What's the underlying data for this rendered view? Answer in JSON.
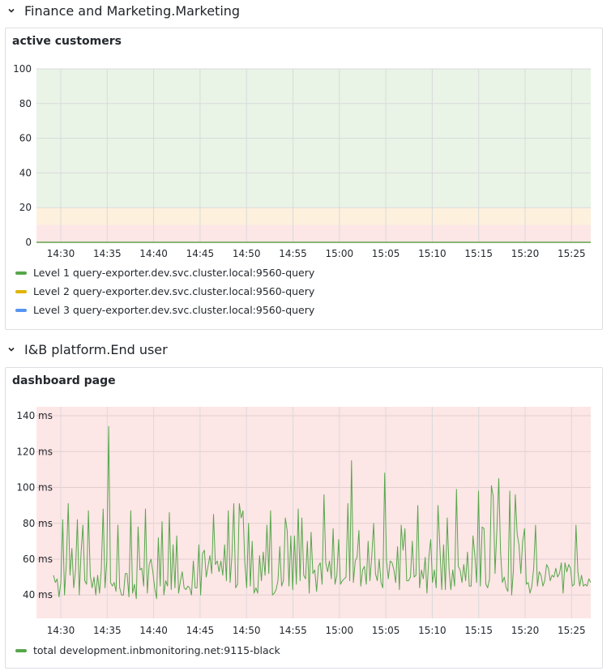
{
  "rows": [
    {
      "title": "Finance and Marketing.Marketing"
    },
    {
      "title": "I&B platform.End user"
    }
  ],
  "panels": [
    {
      "title": "active customers",
      "legend": [
        {
          "label": "Level 1 query-exporter.dev.svc.cluster.local:9560-query",
          "color": "#56a64b"
        },
        {
          "label": "Level 2 query-exporter.dev.svc.cluster.local:9560-query",
          "color": "#e0b400"
        },
        {
          "label": "Level 3 query-exporter.dev.svc.cluster.local:9560-query",
          "color": "#5794f2"
        }
      ]
    },
    {
      "title": "dashboard page",
      "legend": [
        {
          "label": "total development.inbmonitoring.net:9115-black",
          "color": "#56a64b"
        }
      ]
    }
  ],
  "chart_data": [
    {
      "type": "line",
      "title": "active customers",
      "x_ticks": [
        "14:30",
        "14:35",
        "14:40",
        "14:45",
        "14:50",
        "14:55",
        "15:00",
        "15:05",
        "15:10",
        "15:15",
        "15:20",
        "15:25"
      ],
      "y_ticks": [
        "0",
        "20",
        "40",
        "60",
        "80",
        "100"
      ],
      "ylim": [
        0,
        100
      ],
      "thresholds": [
        {
          "from": 0,
          "to": 10,
          "color": "#fde6e6"
        },
        {
          "from": 10,
          "to": 20,
          "color": "#fdf0dc"
        },
        {
          "from": 20,
          "to": 100,
          "color": "#e9f4e6"
        }
      ],
      "series": [
        {
          "name": "Level 1 query-exporter.dev.svc.cluster.local:9560-query",
          "color": "#56a64b",
          "values": [
            0
          ]
        },
        {
          "name": "Level 2 query-exporter.dev.svc.cluster.local:9560-query",
          "color": "#e0b400",
          "values": [
            0
          ]
        },
        {
          "name": "Level 3 query-exporter.dev.svc.cluster.local:9560-query",
          "color": "#5794f2",
          "values": [
            0
          ]
        }
      ],
      "grid": true,
      "legend_position": "bottom"
    },
    {
      "type": "line",
      "title": "dashboard page",
      "x_ticks": [
        "14:30",
        "14:35",
        "14:40",
        "14:45",
        "14:50",
        "14:55",
        "15:00",
        "15:05",
        "15:10",
        "15:15",
        "15:20",
        "15:25"
      ],
      "y_ticks": [
        "40 ms",
        "60 ms",
        "80 ms",
        "100 ms",
        "120 ms",
        "140 ms"
      ],
      "ylim": [
        27,
        145
      ],
      "y_unit": "ms",
      "background": "#fde6e6",
      "grid": true,
      "legend_position": "bottom",
      "series": [
        {
          "name": "total development.inbmonitoring.net:9115-black",
          "color": "#56a64b",
          "values": [
            51,
            47,
            49,
            39,
            47,
            82,
            40,
            58,
            91,
            51,
            66,
            44,
            54,
            82,
            40,
            64,
            79,
            48,
            46,
            87,
            51,
            44,
            50,
            40,
            51,
            41,
            54,
            88,
            44,
            59,
            134,
            47,
            45,
            47,
            42,
            79,
            44,
            40,
            40,
            52,
            52,
            39,
            87,
            41,
            46,
            38,
            78,
            54,
            55,
            45,
            88,
            41,
            57,
            60,
            53,
            44,
            38,
            72,
            45,
            81,
            40,
            48,
            45,
            86,
            43,
            68,
            44,
            73,
            41,
            48,
            53,
            44,
            43,
            45,
            44,
            40,
            59,
            44,
            44,
            68,
            40,
            63,
            65,
            50,
            56,
            62,
            52,
            85,
            57,
            59,
            53,
            59,
            51,
            68,
            48,
            87,
            47,
            62,
            91,
            44,
            46,
            91,
            83,
            87,
            58,
            44,
            80,
            45,
            70,
            41,
            44,
            41,
            62,
            48,
            64,
            51,
            79,
            52,
            87,
            40,
            41,
            43,
            48,
            67,
            45,
            48,
            83,
            76,
            45,
            73,
            43,
            73,
            46,
            88,
            48,
            83,
            51,
            49,
            70,
            41,
            75,
            52,
            54,
            42,
            56,
            58,
            46,
            96,
            58,
            53,
            59,
            49,
            77,
            46,
            51,
            71,
            46,
            48,
            49,
            50,
            91,
            48,
            115,
            47,
            59,
            61,
            76,
            45,
            54,
            56,
            46,
            70,
            48,
            62,
            80,
            52,
            48,
            60,
            47,
            44,
            108,
            59,
            49,
            59,
            58,
            54,
            47,
            67,
            43,
            79,
            65,
            77,
            48,
            48,
            50,
            70,
            50,
            51,
            90,
            44,
            54,
            49,
            61,
            41,
            61,
            71,
            47,
            54,
            44,
            90,
            67,
            43,
            68,
            43,
            83,
            54,
            43,
            54,
            45,
            99,
            56,
            54,
            47,
            57,
            48,
            64,
            45,
            45,
            73,
            62,
            47,
            98,
            45,
            78,
            77,
            46,
            44,
            49,
            101,
            95,
            52,
            77,
            105,
            64,
            47,
            50,
            44,
            42,
            98,
            40,
            54,
            96,
            74,
            68,
            52,
            70,
            77,
            46,
            47,
            41,
            45,
            55,
            79,
            45,
            53,
            51,
            45,
            48,
            57,
            55,
            48,
            51,
            50,
            55,
            50,
            52,
            58,
            41,
            58,
            53,
            57,
            55,
            45,
            46,
            79,
            53,
            45,
            51,
            45,
            46,
            45,
            49,
            47
          ]
        }
      ]
    }
  ]
}
